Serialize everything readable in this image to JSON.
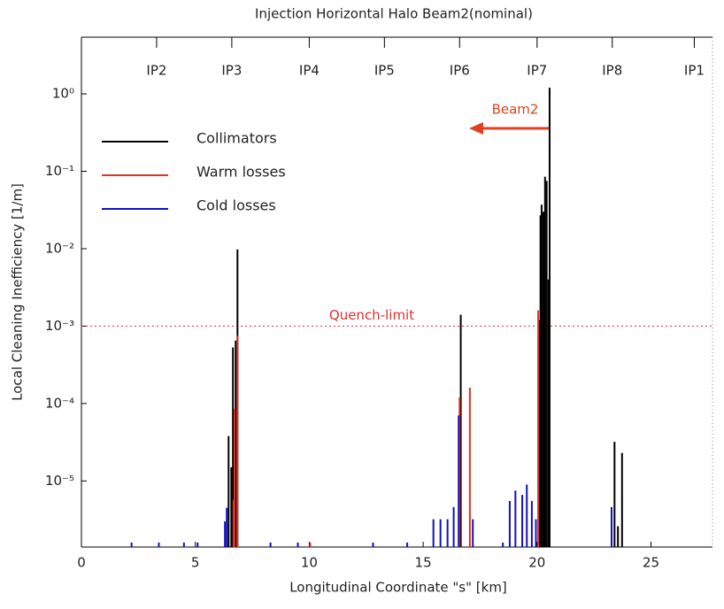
{
  "chart_data": {
    "type": "spike",
    "title": "Injection Horizontal Halo Beam2(nominal)",
    "x_label": "Longitudinal Coordinate \"s\" [km]",
    "y_label": "Local Cleaning Inefficiency [1/m]",
    "xlim": [
      0,
      27.7
    ],
    "xticks": [
      0,
      5,
      10,
      15,
      20,
      25
    ],
    "ylim": [
      1.4e-06,
      5.4
    ],
    "log_y": true,
    "yticks": [
      {
        "value": 1,
        "label": "10⁰"
      },
      {
        "value": 0.1,
        "label": "10⁻¹"
      },
      {
        "value": 0.01,
        "label": "10⁻²"
      },
      {
        "value": 0.001,
        "label": "10⁻³"
      },
      {
        "value": 0.0001,
        "label": "10⁻⁴"
      },
      {
        "value": 1e-05,
        "label": "10⁻⁵"
      }
    ],
    "legend": "upper left",
    "ip_labels": [
      {
        "label": "IP2",
        "x": 3.3
      },
      {
        "label": "IP3",
        "x": 6.6
      },
      {
        "label": "IP4",
        "x": 10.0
      },
      {
        "label": "IP5",
        "x": 13.3
      },
      {
        "label": "IP6",
        "x": 16.6
      },
      {
        "label": "IP7",
        "x": 20.0
      },
      {
        "label": "IP8",
        "x": 23.3
      },
      {
        "label": "IP1",
        "x": 26.9
      }
    ],
    "quench_limit": {
      "label": "Quench-limit",
      "value": 0.001,
      "color": "#e03030"
    },
    "beam_annotation": {
      "text": "Beam2",
      "color": "#e04020"
    },
    "series": [
      {
        "name": "Collimators",
        "color": "#000000",
        "x": [
          6.46,
          6.58,
          6.65,
          6.77,
          6.85,
          16.65,
          20.1,
          20.15,
          20.2,
          20.28,
          20.35,
          20.42,
          20.5,
          20.55,
          23.4,
          23.55,
          23.73
        ],
        "values": [
          3.8e-05,
          1.5e-05,
          0.00053,
          0.00065,
          0.0098,
          0.0014,
          0.0012,
          0.027,
          0.037,
          0.03,
          0.085,
          0.075,
          0.004,
          1.2,
          3.2e-05,
          2.6e-06,
          2.3e-05
        ]
      },
      {
        "name": "Warm losses",
        "color": "#e03020",
        "x": [
          6.68,
          6.72,
          6.85,
          10.04,
          16.6,
          17.05,
          20.05
        ],
        "values": [
          5.7e-06,
          8.6e-05,
          0.00075,
          1.6e-06,
          0.00012,
          0.00016,
          0.0016
        ]
      },
      {
        "name": "Cold losses",
        "color": "#1010c0",
        "x": [
          2.2,
          3.4,
          4.5,
          5.1,
          6.3,
          6.38,
          8.3,
          9.5,
          12.8,
          14.3,
          15.45,
          15.76,
          16.07,
          16.34,
          16.56,
          17.18,
          18.5,
          18.8,
          19.05,
          19.35,
          19.55,
          19.77,
          19.95,
          23.27
        ],
        "values": [
          1.6e-06,
          1.6e-06,
          1.6e-06,
          1.6e-06,
          3e-06,
          4.5e-06,
          1.6e-06,
          1.6e-06,
          1.6e-06,
          1.6e-06,
          3.2e-06,
          3.2e-06,
          3.2e-06,
          4.6e-06,
          7e-05,
          3.2e-06,
          1.6e-06,
          5.5e-06,
          7.5e-06,
          6.6e-06,
          9e-06,
          5.5e-06,
          3.2e-06,
          4.6e-06
        ]
      }
    ]
  }
}
